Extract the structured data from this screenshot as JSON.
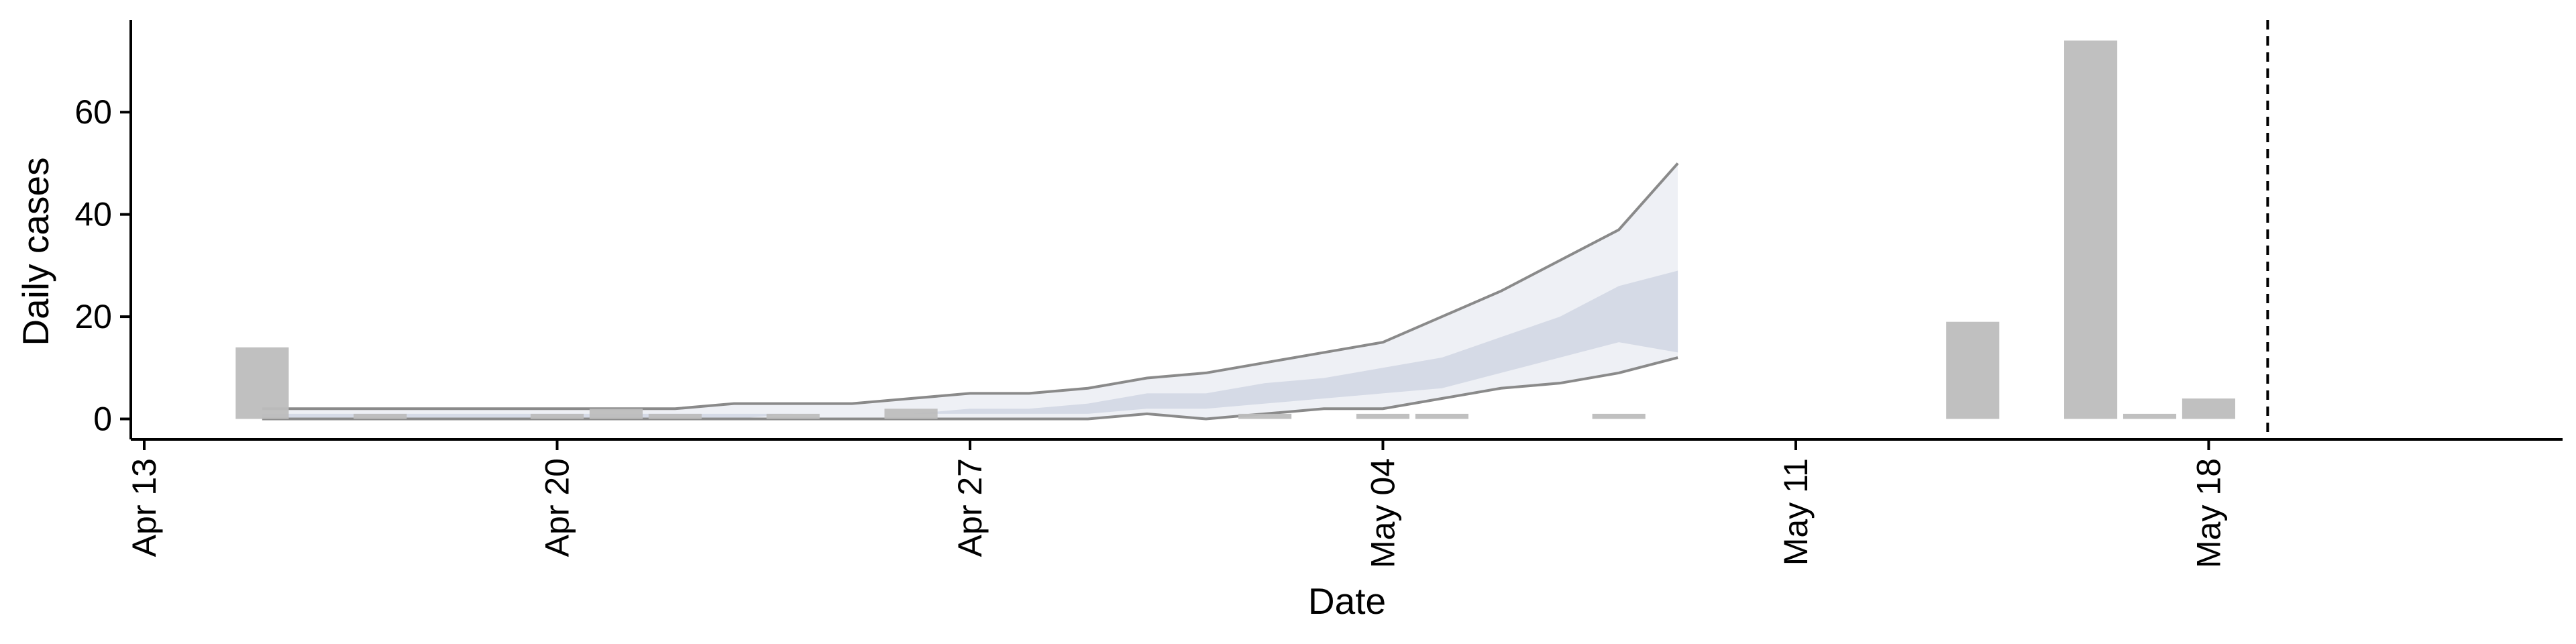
{
  "chart_data": {
    "type": "bar",
    "xlabel": "Date",
    "ylabel": "Daily cases",
    "x_axis": {
      "type": "date",
      "range": [
        "2020-04-13",
        "2020-05-24"
      ],
      "ticks": [
        {
          "date": "2020-04-13",
          "label": "Apr 13"
        },
        {
          "date": "2020-04-20",
          "label": "Apr 20"
        },
        {
          "date": "2020-04-27",
          "label": "Apr 27"
        },
        {
          "date": "2020-05-04",
          "label": "May 04"
        },
        {
          "date": "2020-05-11",
          "label": "May 11"
        },
        {
          "date": "2020-05-18",
          "label": "May 18"
        }
      ]
    },
    "y_axis": {
      "range": [
        -4,
        78
      ],
      "ticks": [
        0,
        20,
        40,
        60
      ]
    },
    "grid": false,
    "colors": {
      "bars": "#bdbdbd",
      "band_outer": "#eef0f5",
      "band_inner": "#d5dae6",
      "band_edge": "#8a8a8a",
      "axis": "#000000",
      "vline": "#000000"
    },
    "series": [
      {
        "type": "bar",
        "points": [
          {
            "x": "2020-04-15",
            "y": 14
          },
          {
            "x": "2020-04-17",
            "y": 1
          },
          {
            "x": "2020-04-20",
            "y": 1
          },
          {
            "x": "2020-04-21",
            "y": 2
          },
          {
            "x": "2020-04-22",
            "y": 1
          },
          {
            "x": "2020-04-24",
            "y": 1
          },
          {
            "x": "2020-04-26",
            "y": 2
          },
          {
            "x": "2020-05-02",
            "y": 1
          },
          {
            "x": "2020-05-04",
            "y": 1
          },
          {
            "x": "2020-05-05",
            "y": 1
          },
          {
            "x": "2020-05-08",
            "y": 1
          },
          {
            "x": "2020-05-14",
            "y": 19
          },
          {
            "x": "2020-05-16",
            "y": 74
          },
          {
            "x": "2020-05-17",
            "y": 1
          },
          {
            "x": "2020-05-18",
            "y": 4
          }
        ]
      },
      {
        "type": "band",
        "dates": [
          "2020-04-15",
          "2020-04-16",
          "2020-04-17",
          "2020-04-18",
          "2020-04-19",
          "2020-04-20",
          "2020-04-21",
          "2020-04-22",
          "2020-04-23",
          "2020-04-24",
          "2020-04-25",
          "2020-04-26",
          "2020-04-27",
          "2020-04-28",
          "2020-04-29",
          "2020-04-30",
          "2020-05-01",
          "2020-05-02",
          "2020-05-03",
          "2020-05-04",
          "2020-05-05",
          "2020-05-06",
          "2020-05-07",
          "2020-05-08",
          "2020-05-09"
        ],
        "outer_low": [
          0,
          0,
          0,
          0,
          0,
          0,
          0,
          0,
          0,
          0,
          0,
          0,
          0,
          0,
          0,
          1,
          0,
          1,
          2,
          2,
          4,
          6,
          7,
          9,
          12
        ],
        "outer_high": [
          2,
          2,
          2,
          2,
          2,
          2,
          2,
          2,
          3,
          3,
          3,
          4,
          5,
          5,
          6,
          8,
          9,
          11,
          13,
          15,
          20,
          25,
          31,
          37,
          50
        ],
        "inner_low": [
          0,
          0,
          0,
          0,
          0,
          0,
          0,
          0,
          0,
          1,
          1,
          1,
          1,
          1,
          1,
          2,
          2,
          3,
          4,
          5,
          6,
          9,
          12,
          15,
          13
        ],
        "inner_high": [
          1,
          1,
          1,
          1,
          1,
          1,
          1,
          1,
          1,
          1,
          1,
          1,
          2,
          2,
          3,
          5,
          5,
          7,
          8,
          10,
          12,
          16,
          20,
          26,
          29
        ]
      }
    ],
    "vline": {
      "x": "2020-05-19",
      "style": "dashed"
    }
  }
}
